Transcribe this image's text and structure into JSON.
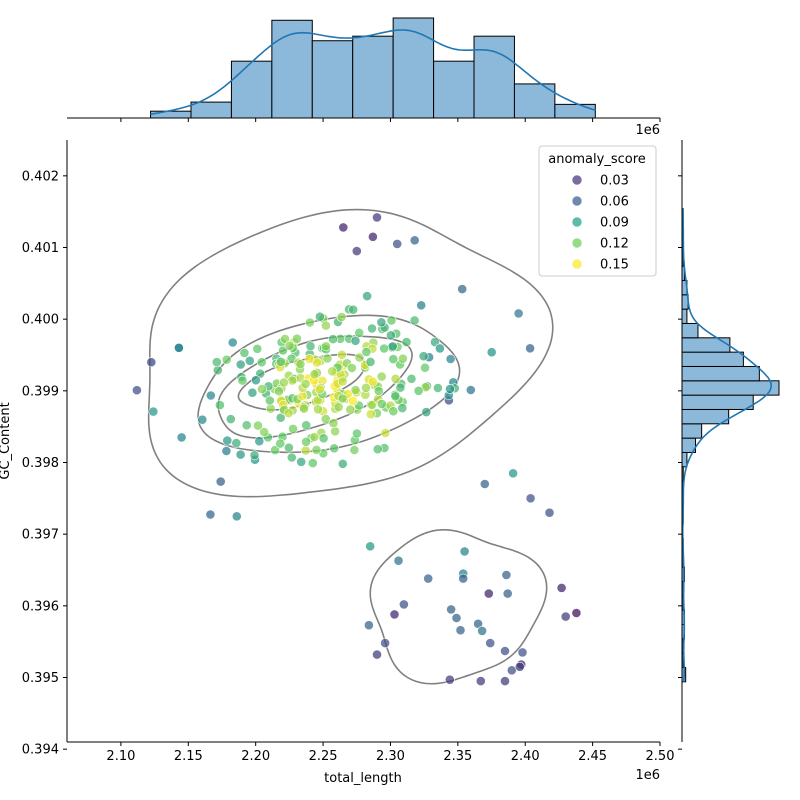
{
  "chart_data": {
    "type": "scatter",
    "subtype": "jointplot with KDE contours and marginal histograms",
    "xlabel": "total_length",
    "ylabel": "GC_Content",
    "x_offset_label": "1e6",
    "xlim": [
      2060000,
      2500000
    ],
    "ylim": [
      0.3941,
      0.4025
    ],
    "xticks": [
      2100000,
      2150000,
      2200000,
      2250000,
      2300000,
      2350000,
      2400000,
      2450000,
      2500000
    ],
    "xtick_labels": [
      "2.10",
      "2.15",
      "2.20",
      "2.25",
      "2.30",
      "2.35",
      "2.40",
      "2.45",
      "2.50"
    ],
    "yticks": [
      0.394,
      0.395,
      0.396,
      0.397,
      0.398,
      0.399,
      0.4,
      0.401,
      0.402
    ],
    "ytick_labels": [
      "0.394",
      "0.395",
      "0.396",
      "0.397",
      "0.398",
      "0.399",
      "0.400",
      "0.401",
      "0.402"
    ],
    "grid": false,
    "hue": "anomaly_score",
    "legend": {
      "title": "anomaly_score",
      "placement": "top-right",
      "entries": [
        {
          "label": "0.03",
          "color": "#46327e"
        },
        {
          "label": "0.06",
          "color": "#365c8d"
        },
        {
          "label": "0.09",
          "color": "#1fa187"
        },
        {
          "label": "0.12",
          "color": "#6ece58"
        },
        {
          "label": "0.15",
          "color": "#fde725"
        }
      ]
    },
    "palette": {
      "low": "#440154",
      "mid": "#21918c",
      "high": "#fde725"
    },
    "histogram_color": "#1f77b4",
    "kde_color": "#1f77b4",
    "contour_color": "#808080",
    "main_cluster": {
      "n": 260,
      "x_mean": 2255000,
      "x_sd": 45000,
      "y_mean": 0.39905,
      "y_sd": 0.00075,
      "corr": 0.55
    },
    "outlier_points": [
      {
        "x": 2290000,
        "y": 0.40142,
        "s": 0.04
      },
      {
        "x": 2265000,
        "y": 0.40128,
        "s": 0.03
      },
      {
        "x": 2318000,
        "y": 0.4011,
        "s": 0.06
      },
      {
        "x": 2275000,
        "y": 0.40095,
        "s": 0.04
      },
      {
        "x": 2305000,
        "y": 0.40105,
        "s": 0.05
      },
      {
        "x": 2287000,
        "y": 0.40115,
        "s": 0.03
      },
      {
        "x": 2370000,
        "y": 0.3977,
        "s": 0.06
      },
      {
        "x": 2391000,
        "y": 0.39785,
        "s": 0.09
      },
      {
        "x": 2404000,
        "y": 0.3975,
        "s": 0.05
      },
      {
        "x": 2418000,
        "y": 0.3973,
        "s": 0.05
      },
      {
        "x": 2186000,
        "y": 0.39725,
        "s": 0.08
      },
      {
        "x": 2285000,
        "y": 0.39683,
        "s": 0.09
      },
      {
        "x": 2306000,
        "y": 0.39663,
        "s": 0.07
      },
      {
        "x": 2355000,
        "y": 0.39676,
        "s": 0.08
      },
      {
        "x": 2328000,
        "y": 0.39638,
        "s": 0.06
      },
      {
        "x": 2354000,
        "y": 0.39645,
        "s": 0.08
      },
      {
        "x": 2354000,
        "y": 0.39638,
        "s": 0.06
      },
      {
        "x": 2386000,
        "y": 0.39643,
        "s": 0.06
      },
      {
        "x": 2373000,
        "y": 0.39617,
        "s": 0.03
      },
      {
        "x": 2387000,
        "y": 0.39617,
        "s": 0.06
      },
      {
        "x": 2427000,
        "y": 0.39625,
        "s": 0.03
      },
      {
        "x": 2310000,
        "y": 0.39602,
        "s": 0.05
      },
      {
        "x": 2438000,
        "y": 0.3959,
        "s": 0.02
      },
      {
        "x": 2430000,
        "y": 0.39585,
        "s": 0.04
      },
      {
        "x": 2303000,
        "y": 0.39588,
        "s": 0.03
      },
      {
        "x": 2345000,
        "y": 0.39595,
        "s": 0.06
      },
      {
        "x": 2349000,
        "y": 0.39583,
        "s": 0.06
      },
      {
        "x": 2284000,
        "y": 0.39573,
        "s": 0.06
      },
      {
        "x": 2365000,
        "y": 0.39575,
        "s": 0.06
      },
      {
        "x": 2352000,
        "y": 0.39566,
        "s": 0.06
      },
      {
        "x": 2368000,
        "y": 0.39565,
        "s": 0.07
      },
      {
        "x": 2296000,
        "y": 0.39548,
        "s": 0.05
      },
      {
        "x": 2374000,
        "y": 0.39548,
        "s": 0.05
      },
      {
        "x": 2385000,
        "y": 0.39537,
        "s": 0.05
      },
      {
        "x": 2398000,
        "y": 0.39535,
        "s": 0.05
      },
      {
        "x": 2290000,
        "y": 0.39532,
        "s": 0.04
      },
      {
        "x": 2397000,
        "y": 0.39518,
        "s": 0.03
      },
      {
        "x": 2390000,
        "y": 0.3951,
        "s": 0.05
      },
      {
        "x": 2396000,
        "y": 0.39515,
        "s": 0.04
      },
      {
        "x": 2344000,
        "y": 0.39497,
        "s": 0.04
      },
      {
        "x": 2367000,
        "y": 0.39495,
        "s": 0.04
      },
      {
        "x": 2385000,
        "y": 0.39495,
        "s": 0.04
      },
      {
        "x": 2143000,
        "y": 0.3996,
        "s": 0.08
      },
      {
        "x": 2143000,
        "y": 0.3996,
        "s": 0.08
      },
      {
        "x": 2124000,
        "y": 0.39871,
        "s": 0.09
      },
      {
        "x": 2145000,
        "y": 0.39835,
        "s": 0.08
      }
    ],
    "kde_contour_levels": [
      {
        "level": 1,
        "center": [
          2240000,
          0.39905
        ],
        "rx": 70000,
        "ry": 0.00108,
        "rotation": -20
      },
      {
        "level": 2,
        "center": [
          2260000,
          0.3991
        ],
        "rx": 88000,
        "ry": 0.00082,
        "rotation": -12
      },
      {
        "level": 3,
        "center": [
          2255000,
          0.3991
        ],
        "rx": 57000,
        "ry": 0.00052,
        "rotation": -15
      },
      {
        "level": 4,
        "center": [
          2252000,
          0.3991
        ],
        "rx": 32000,
        "ry": 0.00028,
        "rotation": -10
      }
    ],
    "x_histogram": {
      "bin_edges": [
        2122000,
        2152000,
        2182000,
        2212000,
        2242000,
        2272000,
        2302000,
        2332000,
        2362000,
        2392000,
        2422000,
        2452000
      ],
      "counts": [
        3,
        7,
        25,
        43,
        34,
        36,
        44,
        25,
        36,
        15,
        6
      ]
    },
    "y_histogram": {
      "bins_bottom_up": [
        {
          "y0": 0.39494,
          "y1": 0.39514,
          "c": 3
        },
        {
          "y0": 0.39514,
          "y1": 0.39534,
          "c": 1
        },
        {
          "y0": 0.39534,
          "y1": 0.39554,
          "c": 1
        },
        {
          "y0": 0.39554,
          "y1": 0.39574,
          "c": 2
        },
        {
          "y0": 0.39574,
          "y1": 0.39594,
          "c": 2
        },
        {
          "y0": 0.39594,
          "y1": 0.39614,
          "c": 1
        },
        {
          "y0": 0.39614,
          "y1": 0.39634,
          "c": 1
        },
        {
          "y0": 0.39634,
          "y1": 0.39654,
          "c": 2
        },
        {
          "y0": 0.39654,
          "y1": 0.39674,
          "c": 1
        },
        {
          "y0": 0.39674,
          "y1": 0.39694,
          "c": 1
        },
        {
          "y0": 0.39694,
          "y1": 0.39714,
          "c": 0
        },
        {
          "y0": 0.39714,
          "y1": 0.39734,
          "c": 1
        },
        {
          "y0": 0.39734,
          "y1": 0.39754,
          "c": 1
        },
        {
          "y0": 0.39754,
          "y1": 0.39774,
          "c": 1
        },
        {
          "y0": 0.39774,
          "y1": 0.39794,
          "c": 1
        },
        {
          "y0": 0.39794,
          "y1": 0.39814,
          "c": 4
        },
        {
          "y0": 0.39814,
          "y1": 0.39834,
          "c": 11
        },
        {
          "y0": 0.39834,
          "y1": 0.39854,
          "c": 16
        },
        {
          "y0": 0.39854,
          "y1": 0.39874,
          "c": 38
        },
        {
          "y0": 0.39874,
          "y1": 0.39894,
          "c": 58
        },
        {
          "y0": 0.39894,
          "y1": 0.39914,
          "c": 79
        },
        {
          "y0": 0.39914,
          "y1": 0.39934,
          "c": 63
        },
        {
          "y0": 0.39934,
          "y1": 0.39954,
          "c": 50
        },
        {
          "y0": 0.39954,
          "y1": 0.39974,
          "c": 39
        },
        {
          "y0": 0.39974,
          "y1": 0.39994,
          "c": 13
        },
        {
          "y0": 0.39994,
          "y1": 0.40014,
          "c": 4
        },
        {
          "y0": 0.40014,
          "y1": 0.40034,
          "c": 5
        },
        {
          "y0": 0.40034,
          "y1": 0.40054,
          "c": 4
        },
        {
          "y0": 0.40054,
          "y1": 0.40074,
          "c": 2
        },
        {
          "y0": 0.40074,
          "y1": 0.40094,
          "c": 1
        },
        {
          "y0": 0.40094,
          "y1": 0.40114,
          "c": 1
        },
        {
          "y0": 0.40114,
          "y1": 0.40134,
          "c": 1
        },
        {
          "y0": 0.40134,
          "y1": 0.40154,
          "c": 1
        }
      ]
    }
  }
}
